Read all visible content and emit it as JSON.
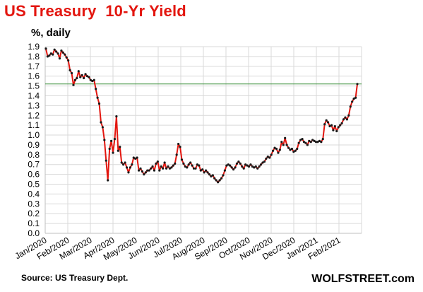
{
  "header": {
    "title": "US Treasury  10-Yr Yield",
    "subtitle": "%, daily"
  },
  "footer": {
    "source": "Source: US Treasury Dept.",
    "brand": "WOLFSTREET.com"
  },
  "colors": {
    "title": "#e3160f",
    "line": "#e3160f",
    "marker": "#1a1a1a",
    "reference": "#3a8f3a",
    "grid": "#d9d9d9"
  },
  "chart_data": {
    "type": "line",
    "title": "US Treasury  10-Yr Yield",
    "ylabel": "%, daily",
    "ylim": [
      0.0,
      1.9
    ],
    "yticks": [
      "1.9",
      "1.8",
      "1.7",
      "1.6",
      "1.5",
      "1.4",
      "1.3",
      "1.2",
      "1.1",
      "1.0",
      "0.9",
      "0.8",
      "0.7",
      "0.6",
      "0.5",
      "0.4",
      "0.3",
      "0.2",
      "0.1",
      "0.0"
    ],
    "xticks": [
      "Jan/2020",
      "Feb/2020",
      "Mar/2020",
      "Apr/2020",
      "May/2020",
      "Jun/2020",
      "Jul/2020",
      "Aug/2020",
      "Sep/2020",
      "Oct/2020",
      "Nov/2020",
      "Dec/2020",
      "Jan/2021",
      "Feb/2021"
    ],
    "grid": true,
    "reference_line": 1.52,
    "series": [
      {
        "values": [
          1.88,
          1.8,
          1.81,
          1.83,
          1.82,
          1.87,
          1.85,
          1.83,
          1.78,
          1.86,
          1.84,
          1.82,
          1.79,
          1.76,
          1.66,
          1.63,
          1.51,
          1.56,
          1.58,
          1.65,
          1.59,
          1.61,
          1.58,
          1.62,
          1.6,
          1.59,
          1.56,
          1.55,
          1.56,
          1.47,
          1.38,
          1.32,
          1.13,
          1.08,
          0.95,
          0.74,
          0.54,
          0.86,
          0.94,
          0.82,
          0.96,
          1.19,
          0.84,
          0.88,
          0.72,
          0.7,
          0.72,
          0.67,
          0.62,
          0.67,
          0.7,
          0.77,
          0.76,
          0.77,
          0.64,
          0.66,
          0.63,
          0.6,
          0.62,
          0.64,
          0.64,
          0.66,
          0.68,
          0.64,
          0.71,
          0.73,
          0.64,
          0.68,
          0.66,
          0.72,
          0.66,
          0.68,
          0.66,
          0.67,
          0.69,
          0.71,
          0.8,
          0.91,
          0.88,
          0.75,
          0.71,
          0.68,
          0.67,
          0.7,
          0.72,
          0.69,
          0.66,
          0.66,
          0.7,
          0.69,
          0.64,
          0.65,
          0.62,
          0.64,
          0.62,
          0.6,
          0.58,
          0.59,
          0.56,
          0.54,
          0.52,
          0.54,
          0.56,
          0.59,
          0.64,
          0.69,
          0.7,
          0.69,
          0.67,
          0.65,
          0.67,
          0.71,
          0.73,
          0.71,
          0.68,
          0.66,
          0.7,
          0.69,
          0.68,
          0.7,
          0.68,
          0.67,
          0.68,
          0.66,
          0.68,
          0.7,
          0.72,
          0.73,
          0.76,
          0.78,
          0.77,
          0.8,
          0.84,
          0.87,
          0.86,
          0.82,
          0.85,
          0.93,
          0.9,
          0.97,
          0.9,
          0.87,
          0.85,
          0.86,
          0.83,
          0.84,
          0.86,
          0.92,
          0.95,
          0.96,
          0.93,
          0.92,
          0.9,
          0.94,
          0.93,
          0.95,
          0.94,
          0.93,
          0.93,
          0.94,
          0.93,
          0.96,
          1.11,
          1.15,
          1.13,
          1.09,
          1.1,
          1.05,
          1.09,
          1.04,
          1.08,
          1.1,
          1.12,
          1.16,
          1.18,
          1.16,
          1.2,
          1.29,
          1.34,
          1.37,
          1.38,
          1.52
        ]
      }
    ]
  }
}
